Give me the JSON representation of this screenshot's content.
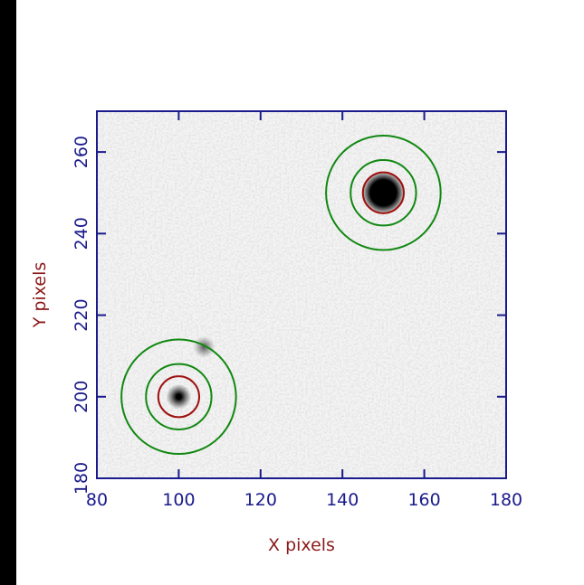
{
  "chart_data": {
    "type": "aperture",
    "xlabel": "X pixels",
    "ylabel": "Y pixels",
    "xlim": [
      80,
      180
    ],
    "ylim": [
      180,
      270
    ],
    "xticks": [
      80,
      100,
      120,
      140,
      160,
      180
    ],
    "yticks": [
      180,
      200,
      220,
      240,
      260
    ],
    "sources": [
      {
        "x": 100,
        "y": 200,
        "radii": [
          5,
          8,
          14
        ],
        "colors": [
          "#a01010",
          "#118811",
          "#118811"
        ]
      },
      {
        "x": 150,
        "y": 250,
        "radii": [
          5,
          8,
          14
        ],
        "colors": [
          "#a01010",
          "#118811",
          "#118811"
        ]
      }
    ]
  }
}
